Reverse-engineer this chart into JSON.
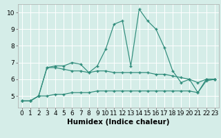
{
  "x": [
    0,
    1,
    2,
    3,
    4,
    5,
    6,
    7,
    8,
    9,
    10,
    11,
    12,
    13,
    14,
    15,
    16,
    17,
    18,
    19,
    20,
    21,
    22,
    23
  ],
  "line1": [
    4.7,
    4.7,
    5.0,
    6.7,
    6.8,
    6.8,
    7.0,
    6.9,
    6.4,
    6.8,
    7.8,
    9.3,
    9.5,
    6.8,
    10.2,
    9.5,
    9.0,
    7.9,
    6.5,
    5.8,
    6.0,
    5.2,
    6.0,
    6.0
  ],
  "line2": [
    4.7,
    4.7,
    5.0,
    6.7,
    6.7,
    6.6,
    6.5,
    6.5,
    6.4,
    6.5,
    6.5,
    6.4,
    6.4,
    6.4,
    6.4,
    6.4,
    6.3,
    6.3,
    6.2,
    6.1,
    6.0,
    5.8,
    6.0,
    6.0
  ],
  "line3": [
    4.7,
    4.7,
    5.0,
    5.0,
    5.1,
    5.1,
    5.2,
    5.2,
    5.2,
    5.3,
    5.3,
    5.3,
    5.3,
    5.3,
    5.3,
    5.3,
    5.3,
    5.3,
    5.3,
    5.3,
    5.3,
    5.2,
    5.9,
    6.0
  ],
  "line_color": "#2E8B7A",
  "bg_color": "#D5EDE8",
  "grid_color": "#FFFFFF",
  "xlabel": "Humidex (Indice chaleur)",
  "ylim": [
    4.3,
    10.5
  ],
  "xlim": [
    -0.5,
    23.5
  ],
  "yticks": [
    5,
    6,
    7,
    8,
    9,
    10
  ],
  "xticks": [
    0,
    1,
    2,
    3,
    4,
    5,
    6,
    7,
    8,
    9,
    10,
    11,
    12,
    13,
    14,
    15,
    16,
    17,
    18,
    19,
    20,
    21,
    22,
    23
  ],
  "xlabel_fontsize": 7.5,
  "tick_fontsize": 6.5
}
